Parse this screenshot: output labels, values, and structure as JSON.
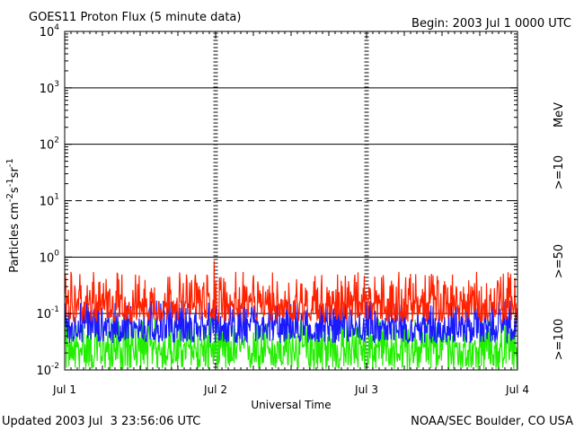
{
  "chart_data": {
    "type": "line",
    "title": "GOES11 Proton Flux (5 minute data)",
    "begin_label": "Begin: 2003 Jul 1 0000 UTC",
    "xlabel": "Universal Time",
    "ylabel_parts": {
      "base": "Particles cm",
      "exp1": "-2",
      "s": "s",
      "exp2": "-1",
      "sr": "sr",
      "exp3": "-1"
    },
    "y_scale": "log",
    "ylim": [
      0.01,
      10000
    ],
    "y_ticks": [
      {
        "base": "10",
        "exp": "-2",
        "value": 0.01
      },
      {
        "base": "10",
        "exp": "-1",
        "value": 0.1
      },
      {
        "base": "10",
        "exp": "0",
        "value": 1
      },
      {
        "base": "10",
        "exp": "1",
        "value": 10
      },
      {
        "base": "10",
        "exp": "2",
        "value": 100
      },
      {
        "base": "10",
        "exp": "3",
        "value": 1000
      },
      {
        "base": "10",
        "exp": "4",
        "value": 10000
      }
    ],
    "x_range_days": [
      0,
      3
    ],
    "x_ticks": [
      {
        "label": "Jul 1",
        "day": 0
      },
      {
        "label": "Jul 2",
        "day": 1
      },
      {
        "label": "Jul 3",
        "day": 2
      },
      {
        "label": "Jul 4",
        "day": 3
      }
    ],
    "reference_lines": [
      {
        "value": 10000,
        "style": "solid"
      },
      {
        "value": 1000,
        "style": "solid"
      },
      {
        "value": 100,
        "style": "solid"
      },
      {
        "value": 10,
        "style": "dashed"
      },
      {
        "value": 1,
        "style": "solid"
      },
      {
        "value": 0.1,
        "style": "solid"
      }
    ],
    "series": [
      {
        "name": ">=10 MeV",
        "label": ">=10",
        "color": "#ff2200",
        "baseline": 0.15,
        "min": 0.07,
        "max": 0.55,
        "spike": {
          "day": 0.99,
          "value": 0.85
        }
      },
      {
        "name": ">=50 MeV",
        "label": ">=50",
        "color": "#1a1aff",
        "baseline": 0.06,
        "min": 0.03,
        "max": 0.17,
        "spike": null
      },
      {
        "name": ">=100 MeV",
        "label": ">=100",
        "color": "#22ee00",
        "baseline": 0.025,
        "min": 0.01,
        "max": 0.085,
        "spike": null
      }
    ],
    "unit_label": "MeV",
    "updated": "Updated 2003 Jul  3 23:56:06 UTC",
    "credit": "NOAA/SEC Boulder, CO USA"
  }
}
